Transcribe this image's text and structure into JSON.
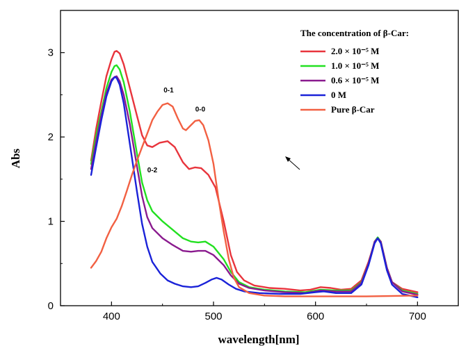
{
  "chart_data": {
    "type": "line",
    "title": "",
    "xlabel": "wavelength[nm]",
    "ylabel": "Abs",
    "xlim": [
      350,
      740
    ],
    "ylim": [
      0,
      3.5
    ],
    "xticks": [
      400,
      500,
      600,
      700
    ],
    "yticks": [
      0,
      1,
      2,
      3
    ],
    "grid": false,
    "legend": {
      "title": "The concentration of β-Car:",
      "position": "top-right"
    },
    "series": [
      {
        "name": "2.0 × 10⁻⁵ M",
        "color": "#e8343c",
        "points": [
          [
            380,
            1.72
          ],
          [
            385,
            2.1
          ],
          [
            390,
            2.42
          ],
          [
            395,
            2.72
          ],
          [
            400,
            2.92
          ],
          [
            403,
            3.01
          ],
          [
            405,
            3.02
          ],
          [
            408,
            2.99
          ],
          [
            412,
            2.86
          ],
          [
            418,
            2.58
          ],
          [
            425,
            2.25
          ],
          [
            430,
            2.02
          ],
          [
            435,
            1.9
          ],
          [
            440,
            1.88
          ],
          [
            447,
            1.93
          ],
          [
            455,
            1.95
          ],
          [
            462,
            1.88
          ],
          [
            470,
            1.7
          ],
          [
            476,
            1.62
          ],
          [
            482,
            1.64
          ],
          [
            488,
            1.63
          ],
          [
            495,
            1.55
          ],
          [
            502,
            1.4
          ],
          [
            510,
            1.0
          ],
          [
            517,
            0.6
          ],
          [
            523,
            0.4
          ],
          [
            530,
            0.3
          ],
          [
            540,
            0.24
          ],
          [
            555,
            0.21
          ],
          [
            570,
            0.2
          ],
          [
            585,
            0.18
          ],
          [
            595,
            0.19
          ],
          [
            605,
            0.22
          ],
          [
            615,
            0.21
          ],
          [
            625,
            0.19
          ],
          [
            635,
            0.2
          ],
          [
            645,
            0.3
          ],
          [
            652,
            0.52
          ],
          [
            658,
            0.75
          ],
          [
            661,
            0.8
          ],
          [
            664,
            0.76
          ],
          [
            670,
            0.45
          ],
          [
            675,
            0.28
          ],
          [
            685,
            0.2
          ],
          [
            700,
            0.16
          ]
        ]
      },
      {
        "name": "1.0 × 10⁻⁵ M",
        "color": "#22e020",
        "points": [
          [
            380,
            1.68
          ],
          [
            385,
            2.02
          ],
          [
            390,
            2.3
          ],
          [
            395,
            2.58
          ],
          [
            400,
            2.77
          ],
          [
            403,
            2.84
          ],
          [
            405,
            2.85
          ],
          [
            408,
            2.8
          ],
          [
            412,
            2.65
          ],
          [
            418,
            2.3
          ],
          [
            425,
            1.8
          ],
          [
            430,
            1.46
          ],
          [
            435,
            1.25
          ],
          [
            440,
            1.12
          ],
          [
            450,
            1.0
          ],
          [
            460,
            0.9
          ],
          [
            470,
            0.8
          ],
          [
            478,
            0.76
          ],
          [
            485,
            0.75
          ],
          [
            492,
            0.76
          ],
          [
            500,
            0.7
          ],
          [
            510,
            0.55
          ],
          [
            517,
            0.4
          ],
          [
            525,
            0.28
          ],
          [
            535,
            0.22
          ],
          [
            550,
            0.19
          ],
          [
            570,
            0.17
          ],
          [
            590,
            0.16
          ],
          [
            605,
            0.19
          ],
          [
            620,
            0.18
          ],
          [
            635,
            0.18
          ],
          [
            645,
            0.28
          ],
          [
            652,
            0.5
          ],
          [
            658,
            0.76
          ],
          [
            661,
            0.81
          ],
          [
            664,
            0.76
          ],
          [
            670,
            0.45
          ],
          [
            675,
            0.28
          ],
          [
            685,
            0.18
          ],
          [
            700,
            0.14
          ]
        ]
      },
      {
        "name": "0.6 × 10⁻⁵ M",
        "color": "#8a1a8e",
        "points": [
          [
            380,
            1.62
          ],
          [
            385,
            1.95
          ],
          [
            390,
            2.25
          ],
          [
            395,
            2.52
          ],
          [
            400,
            2.68
          ],
          [
            403,
            2.71
          ],
          [
            405,
            2.72
          ],
          [
            408,
            2.66
          ],
          [
            412,
            2.5
          ],
          [
            418,
            2.15
          ],
          [
            425,
            1.65
          ],
          [
            430,
            1.3
          ],
          [
            435,
            1.05
          ],
          [
            440,
            0.92
          ],
          [
            450,
            0.8
          ],
          [
            460,
            0.72
          ],
          [
            470,
            0.65
          ],
          [
            478,
            0.64
          ],
          [
            485,
            0.65
          ],
          [
            492,
            0.65
          ],
          [
            500,
            0.6
          ],
          [
            510,
            0.48
          ],
          [
            517,
            0.36
          ],
          [
            525,
            0.26
          ],
          [
            535,
            0.21
          ],
          [
            550,
            0.18
          ],
          [
            570,
            0.16
          ],
          [
            590,
            0.15
          ],
          [
            605,
            0.18
          ],
          [
            620,
            0.17
          ],
          [
            635,
            0.17
          ],
          [
            645,
            0.27
          ],
          [
            652,
            0.5
          ],
          [
            658,
            0.76
          ],
          [
            661,
            0.8
          ],
          [
            664,
            0.76
          ],
          [
            670,
            0.45
          ],
          [
            675,
            0.28
          ],
          [
            685,
            0.17
          ],
          [
            700,
            0.13
          ]
        ]
      },
      {
        "name": "0 M",
        "color": "#1a22d8",
        "points": [
          [
            380,
            1.55
          ],
          [
            385,
            1.88
          ],
          [
            390,
            2.2
          ],
          [
            395,
            2.48
          ],
          [
            400,
            2.66
          ],
          [
            403,
            2.71
          ],
          [
            405,
            2.7
          ],
          [
            408,
            2.62
          ],
          [
            412,
            2.4
          ],
          [
            418,
            1.92
          ],
          [
            425,
            1.35
          ],
          [
            430,
            0.97
          ],
          [
            435,
            0.7
          ],
          [
            440,
            0.52
          ],
          [
            448,
            0.38
          ],
          [
            455,
            0.3
          ],
          [
            462,
            0.26
          ],
          [
            470,
            0.23
          ],
          [
            478,
            0.22
          ],
          [
            485,
            0.23
          ],
          [
            492,
            0.27
          ],
          [
            498,
            0.31
          ],
          [
            503,
            0.33
          ],
          [
            508,
            0.31
          ],
          [
            515,
            0.25
          ],
          [
            522,
            0.2
          ],
          [
            530,
            0.17
          ],
          [
            545,
            0.15
          ],
          [
            565,
            0.14
          ],
          [
            585,
            0.14
          ],
          [
            600,
            0.16
          ],
          [
            608,
            0.17
          ],
          [
            620,
            0.15
          ],
          [
            635,
            0.15
          ],
          [
            645,
            0.25
          ],
          [
            652,
            0.48
          ],
          [
            658,
            0.74
          ],
          [
            661,
            0.8
          ],
          [
            664,
            0.74
          ],
          [
            670,
            0.42
          ],
          [
            675,
            0.25
          ],
          [
            685,
            0.14
          ],
          [
            700,
            0.1
          ]
        ]
      },
      {
        "name": "Pure β-Car",
        "color": "#f26042",
        "points": [
          [
            380,
            0.45
          ],
          [
            385,
            0.53
          ],
          [
            390,
            0.64
          ],
          [
            395,
            0.8
          ],
          [
            400,
            0.93
          ],
          [
            405,
            1.03
          ],
          [
            410,
            1.18
          ],
          [
            415,
            1.36
          ],
          [
            420,
            1.55
          ],
          [
            425,
            1.72
          ],
          [
            430,
            1.88
          ],
          [
            435,
            2.04
          ],
          [
            440,
            2.2
          ],
          [
            445,
            2.3
          ],
          [
            450,
            2.38
          ],
          [
            455,
            2.4
          ],
          [
            460,
            2.36
          ],
          [
            465,
            2.22
          ],
          [
            470,
            2.1
          ],
          [
            473,
            2.08
          ],
          [
            477,
            2.13
          ],
          [
            482,
            2.19
          ],
          [
            486,
            2.2
          ],
          [
            490,
            2.14
          ],
          [
            495,
            1.96
          ],
          [
            500,
            1.68
          ],
          [
            505,
            1.26
          ],
          [
            510,
            0.88
          ],
          [
            515,
            0.55
          ],
          [
            520,
            0.33
          ],
          [
            525,
            0.22
          ],
          [
            535,
            0.15
          ],
          [
            550,
            0.12
          ],
          [
            570,
            0.11
          ],
          [
            600,
            0.11
          ],
          [
            650,
            0.11
          ],
          [
            700,
            0.12
          ]
        ]
      }
    ],
    "annotations": [
      {
        "text": "0-1",
        "x": 456,
        "y": 2.53
      },
      {
        "text": "0-0",
        "x": 487,
        "y": 2.3
      },
      {
        "text": "0-2",
        "x": 440,
        "y": 1.58
      }
    ]
  }
}
